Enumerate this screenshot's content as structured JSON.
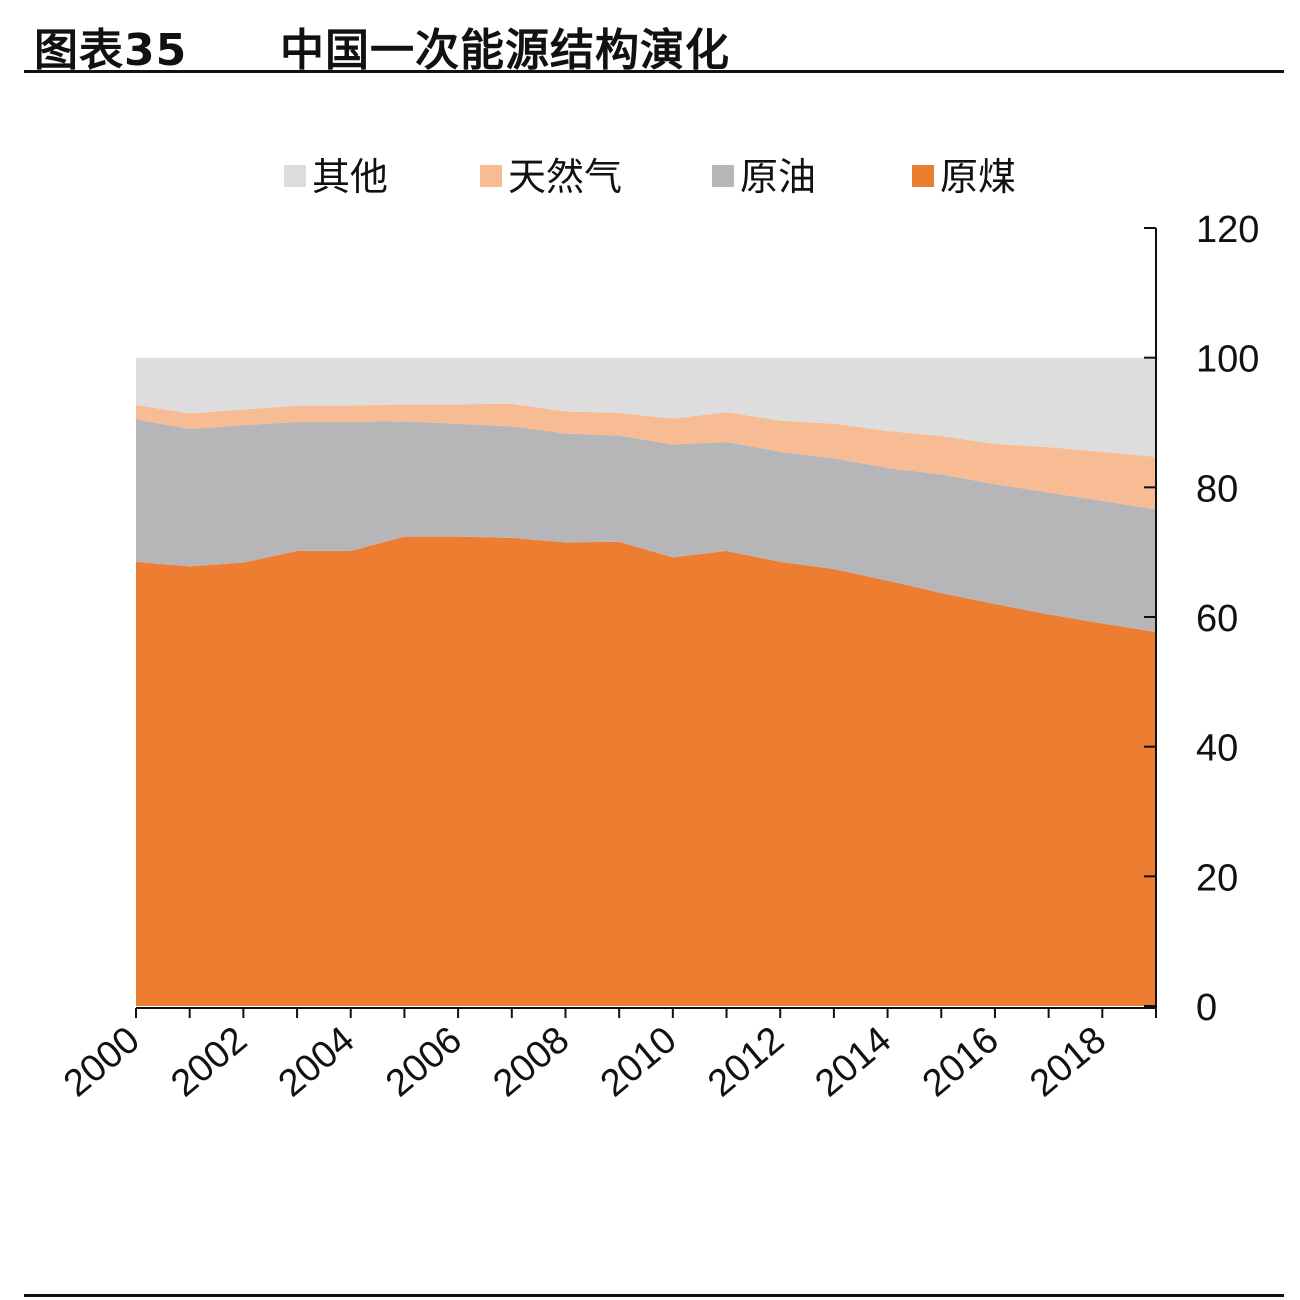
{
  "header": {
    "figure_label": "图表35",
    "title": "中国一次能源结构演化"
  },
  "chart_data": {
    "type": "area",
    "stacked": true,
    "title": "中国一次能源结构演化",
    "x": [
      2000,
      2001,
      2002,
      2003,
      2004,
      2005,
      2006,
      2007,
      2008,
      2009,
      2010,
      2011,
      2012,
      2013,
      2014,
      2015,
      2016,
      2017,
      2018,
      2019
    ],
    "x_tick_labels": [
      "2000",
      "2002",
      "2004",
      "2006",
      "2008",
      "2010",
      "2012",
      "2014",
      "2016",
      "2018"
    ],
    "ylim": [
      0,
      120
    ],
    "y_ticks": [
      0,
      20,
      40,
      60,
      80,
      100,
      120
    ],
    "y_axis_position": "right",
    "legend_position": "top",
    "grid": false,
    "series": [
      {
        "name": "原煤",
        "color": "#ED7D31",
        "values": [
          68.5,
          67.8,
          68.4,
          70.2,
          70.2,
          72.4,
          72.4,
          72.2,
          71.5,
          71.6,
          69.2,
          70.2,
          68.5,
          67.4,
          65.6,
          63.7,
          62.0,
          60.4,
          59.0,
          57.7
        ]
      },
      {
        "name": "原油",
        "color": "#B6B6B8",
        "values": [
          22.0,
          21.2,
          21.2,
          19.9,
          19.9,
          17.8,
          17.4,
          17.2,
          16.8,
          16.4,
          17.4,
          16.8,
          17.0,
          17.1,
          17.4,
          18.3,
          18.5,
          18.8,
          18.9,
          18.9
        ]
      },
      {
        "name": "天然气",
        "color": "#F8BC94",
        "values": [
          2.2,
          2.4,
          2.4,
          2.5,
          2.5,
          2.6,
          3.0,
          3.5,
          3.4,
          3.5,
          4.0,
          4.6,
          4.8,
          5.3,
          5.7,
          5.9,
          6.2,
          7.0,
          7.6,
          8.1
        ]
      },
      {
        "name": "其他",
        "color": "#DEDDDE",
        "values": [
          7.3,
          8.6,
          8.0,
          7.4,
          7.4,
          7.2,
          7.2,
          7.1,
          8.3,
          8.5,
          9.4,
          8.4,
          9.7,
          10.2,
          11.3,
          12.1,
          13.3,
          13.8,
          14.5,
          15.3
        ]
      }
    ]
  }
}
